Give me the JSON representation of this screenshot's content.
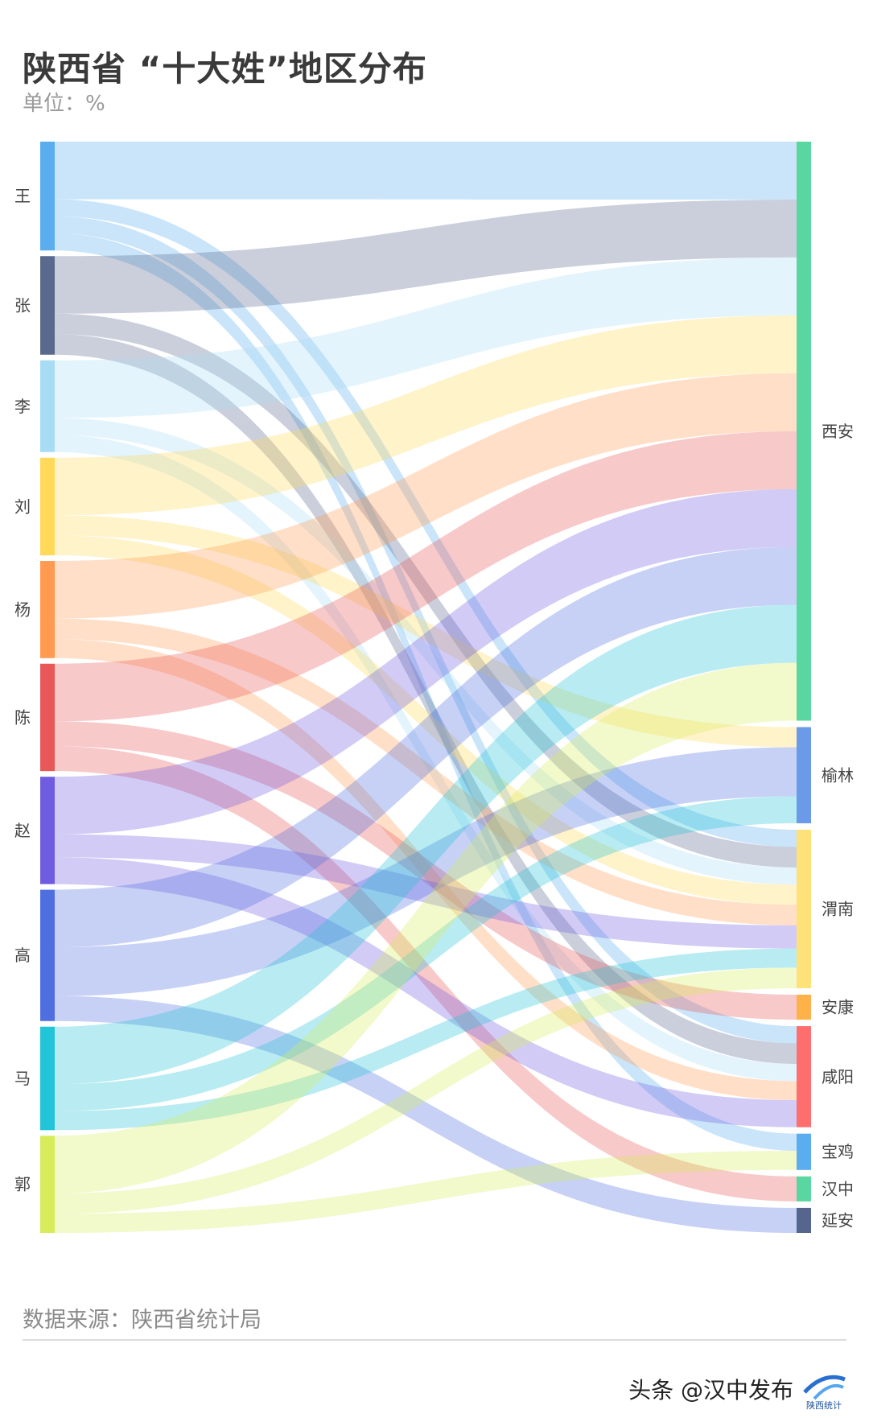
{
  "header": {
    "title": "陕西省 “十大姓”地区分布",
    "unit": "单位：%"
  },
  "footer": {
    "source": "数据来源：陕西省统计局",
    "watermark": "头条 @汉中发布"
  },
  "logo": {
    "text": "陕西统计"
  },
  "colors": {
    "王": "#5aaef0",
    "张": "#5a6a8e",
    "李": "#a8dcf5",
    "刘": "#ffd95a",
    "杨": "#ff9a50",
    "陈": "#e85858",
    "赵": "#6f5ce0",
    "高": "#4f6fe0",
    "马": "#22c4d8",
    "郭": "#d6ec5a",
    "西安": "#5ad6a0",
    "榆林": "#6a9ae8",
    "渭南": "#ffe17a",
    "安康": "#ffb14a",
    "咸阳": "#ff6e6e",
    "宝鸡": "#5aaef0",
    "汉中": "#5ad6a0",
    "延安": "#55658e"
  },
  "chart_data": {
    "type": "sankey",
    "title": "陕西省 “十大姓”地区分布",
    "unit": "%",
    "sources": [
      "王",
      "张",
      "李",
      "刘",
      "杨",
      "陈",
      "赵",
      "高",
      "马",
      "郭"
    ],
    "targets": [
      "西安",
      "榆林",
      "渭南",
      "安康",
      "咸阳",
      "宝鸡",
      "汉中",
      "延安"
    ],
    "links": [
      {
        "source": "王",
        "target": "西安",
        "value": 11.8
      },
      {
        "source": "王",
        "target": "渭南",
        "value": 3.5
      },
      {
        "source": "王",
        "target": "咸阳",
        "value": 3.5
      },
      {
        "source": "王",
        "target": "宝鸡",
        "value": 3.5
      },
      {
        "source": "张",
        "target": "西安",
        "value": 11.8
      },
      {
        "source": "张",
        "target": "渭南",
        "value": 4.2
      },
      {
        "source": "张",
        "target": "咸阳",
        "value": 4.2
      },
      {
        "source": "李",
        "target": "西安",
        "value": 11.8
      },
      {
        "source": "李",
        "target": "渭南",
        "value": 3.5
      },
      {
        "source": "李",
        "target": "咸阳",
        "value": 3.5
      },
      {
        "source": "刘",
        "target": "西安",
        "value": 11.8
      },
      {
        "source": "刘",
        "target": "榆林",
        "value": 4.1
      },
      {
        "source": "刘",
        "target": "渭南",
        "value": 4.1
      },
      {
        "source": "杨",
        "target": "西安",
        "value": 11.8
      },
      {
        "source": "杨",
        "target": "渭南",
        "value": 4.2
      },
      {
        "source": "杨",
        "target": "咸阳",
        "value": 3.9
      },
      {
        "source": "陈",
        "target": "西安",
        "value": 11.8
      },
      {
        "source": "陈",
        "target": "安康",
        "value": 5.1
      },
      {
        "source": "陈",
        "target": "汉中",
        "value": 5.1
      },
      {
        "source": "赵",
        "target": "西安",
        "value": 11.8
      },
      {
        "source": "赵",
        "target": "渭南",
        "value": 4.7
      },
      {
        "source": "赵",
        "target": "咸阳",
        "value": 5.5
      },
      {
        "source": "高",
        "target": "西安",
        "value": 11.8
      },
      {
        "source": "高",
        "target": "榆林",
        "value": 10.0
      },
      {
        "source": "高",
        "target": "延安",
        "value": 5.1
      },
      {
        "source": "马",
        "target": "西安",
        "value": 11.8
      },
      {
        "source": "马",
        "target": "榆林",
        "value": 5.5
      },
      {
        "source": "马",
        "target": "渭南",
        "value": 3.9
      },
      {
        "source": "郭",
        "target": "西安",
        "value": 11.8
      },
      {
        "source": "郭",
        "target": "渭南",
        "value": 4.2
      },
      {
        "source": "郭",
        "target": "宝鸡",
        "value": 3.9
      }
    ]
  }
}
